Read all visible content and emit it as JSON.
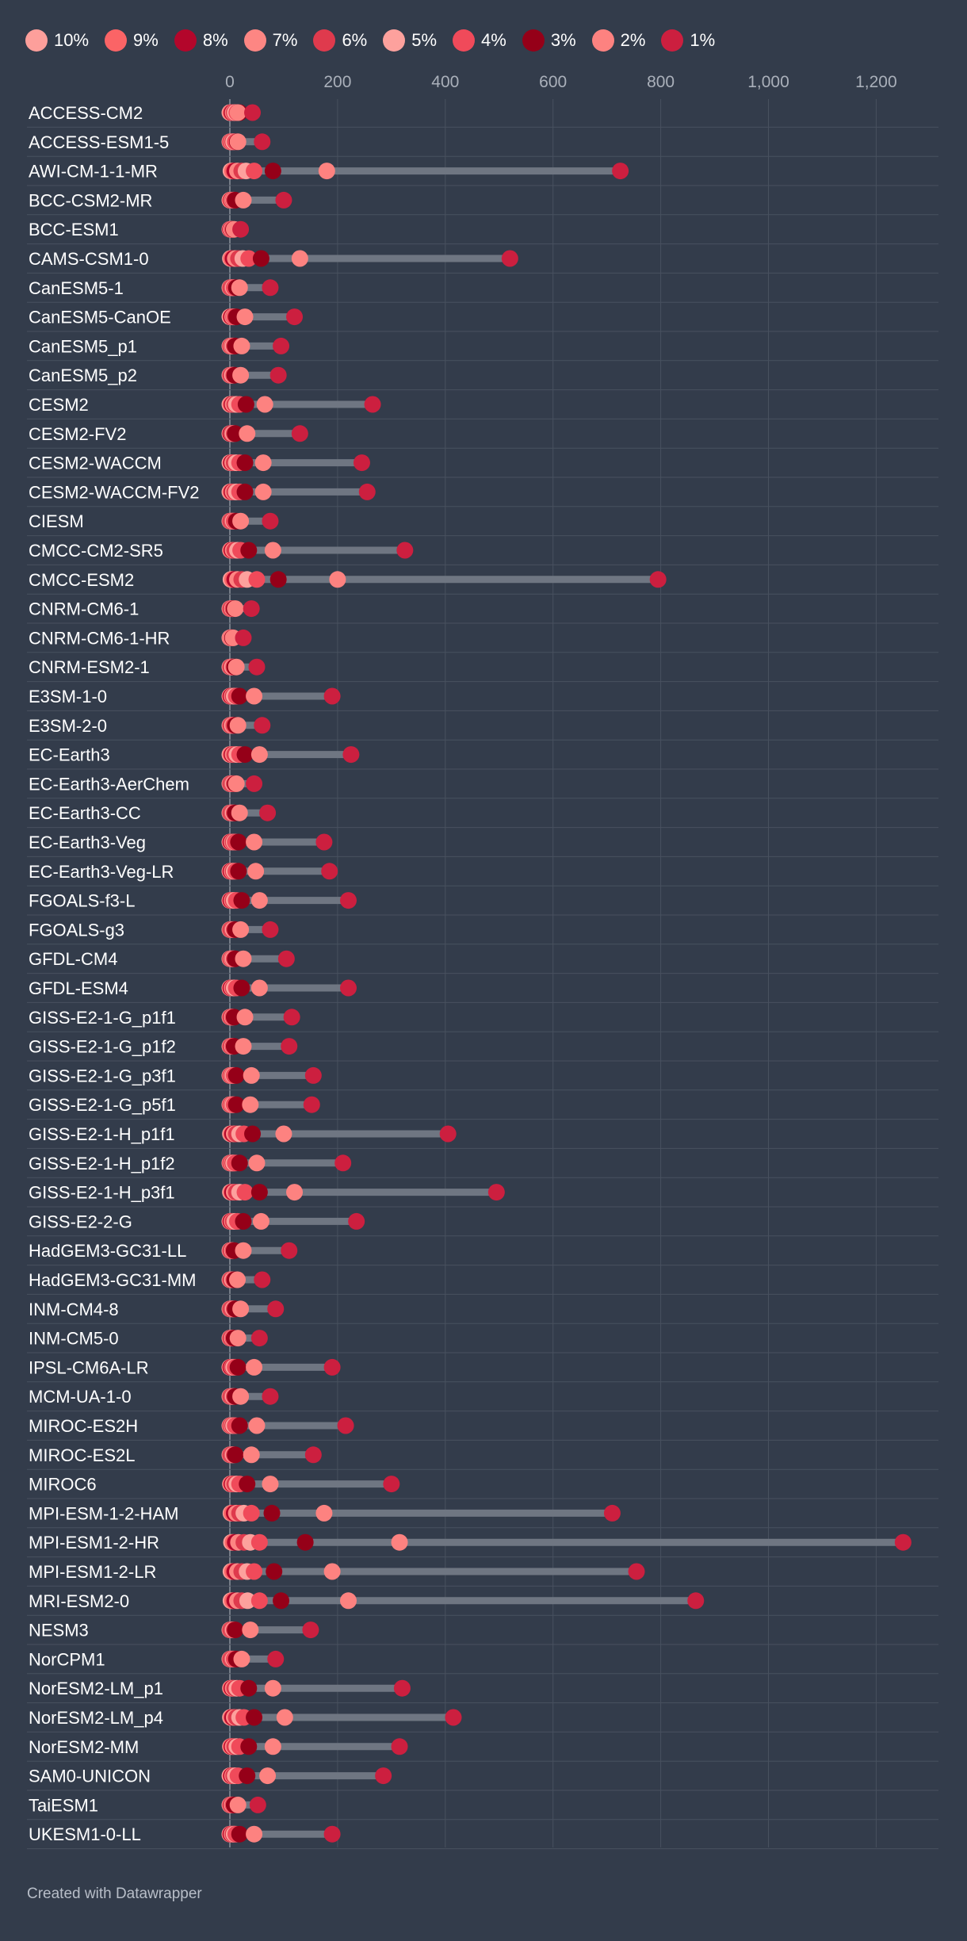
{
  "chart_data": {
    "type": "dot-range",
    "title": "",
    "xlabel": "",
    "ylabel": "",
    "xlim": [
      0,
      1300
    ],
    "xticks": [
      0,
      200,
      400,
      600,
      800,
      1000,
      1200
    ],
    "xtick_labels": [
      "0",
      "200",
      "400",
      "600",
      "800",
      "1,000",
      "1,200"
    ],
    "grid": true,
    "legend_position": "top",
    "series": [
      {
        "name": "10%",
        "color": "#fd9f9b"
      },
      {
        "name": "9%",
        "color": "#fb6466"
      },
      {
        "name": "8%",
        "color": "#b3062b"
      },
      {
        "name": "7%",
        "color": "#fd8683"
      },
      {
        "name": "6%",
        "color": "#df3a4d"
      },
      {
        "name": "5%",
        "color": "#fda19d"
      },
      {
        "name": "4%",
        "color": "#f04a5a"
      },
      {
        "name": "3%",
        "color": "#950018"
      },
      {
        "name": "2%",
        "color": "#fd8280"
      },
      {
        "name": "1%",
        "color": "#cc1f3f"
      }
    ],
    "categories": [
      "ACCESS-CM2",
      "ACCESS-ESM1-5",
      "AWI-CM-1-1-MR",
      "BCC-CSM2-MR",
      "BCC-ESM1",
      "CAMS-CSM1-0",
      "CanESM5-1",
      "CanESM5-CanOE",
      "CanESM5_p1",
      "CanESM5_p2",
      "CESM2",
      "CESM2-FV2",
      "CESM2-WACCM",
      "CESM2-WACCM-FV2",
      "CIESM",
      "CMCC-CM2-SR5",
      "CMCC-ESM2",
      "CNRM-CM6-1",
      "CNRM-CM6-1-HR",
      "CNRM-ESM2-1",
      "E3SM-1-0",
      "E3SM-2-0",
      "EC-Earth3",
      "EC-Earth3-AerChem",
      "EC-Earth3-CC",
      "EC-Earth3-Veg",
      "EC-Earth3-Veg-LR",
      "FGOALS-f3-L",
      "FGOALS-g3",
      "GFDL-CM4",
      "GFDL-ESM4",
      "GISS-E2-1-G_p1f1",
      "GISS-E2-1-G_p1f2",
      "GISS-E2-1-G_p3f1",
      "GISS-E2-1-G_p5f1",
      "GISS-E2-1-H_p1f1",
      "GISS-E2-1-H_p1f2",
      "GISS-E2-1-H_p3f1",
      "GISS-E2-2-G",
      "HadGEM3-GC31-LL",
      "HadGEM3-GC31-MM",
      "INM-CM4-8",
      "INM-CM5-0",
      "IPSL-CM6A-LR",
      "MCM-UA-1-0",
      "MIROC-ES2H",
      "MIROC-ES2L",
      "MIROC6",
      "MPI-ESM-1-2-HAM",
      "MPI-ESM1-2-HR",
      "MPI-ESM1-2-LR",
      "MRI-ESM2-0",
      "NESM3",
      "NorCPM1",
      "NorESM2-LM_p1",
      "NorESM2-LM_p4",
      "NorESM2-MM",
      "SAM0-UNICON",
      "TaiESM1",
      "UKESM1-0-LL"
    ],
    "values": [
      [
        0,
        2,
        4,
        6,
        8,
        10,
        13,
        18,
        15,
        42
      ],
      [
        0,
        1,
        2,
        3,
        5,
        7,
        10,
        14,
        15,
        60
      ],
      [
        2,
        5,
        9,
        14,
        22,
        30,
        45,
        80,
        180,
        725
      ],
      [
        0,
        1,
        3,
        4,
        6,
        7,
        8,
        10,
        25,
        100
      ],
      [
        0,
        1,
        1,
        2,
        3,
        4,
        5,
        7,
        8,
        20
      ],
      [
        1,
        3,
        6,
        10,
        16,
        24,
        35,
        58,
        130,
        520
      ],
      [
        0,
        1,
        2,
        3,
        4,
        6,
        8,
        12,
        18,
        75
      ],
      [
        0,
        2,
        3,
        5,
        7,
        8,
        9,
        12,
        28,
        120
      ],
      [
        0,
        1,
        2,
        3,
        5,
        6,
        8,
        10,
        22,
        95
      ],
      [
        0,
        1,
        2,
        3,
        4,
        5,
        7,
        9,
        20,
        90
      ],
      [
        0,
        2,
        4,
        6,
        9,
        12,
        18,
        30,
        65,
        265
      ],
      [
        0,
        1,
        2,
        4,
        5,
        6,
        8,
        10,
        32,
        130
      ],
      [
        0,
        2,
        3,
        5,
        8,
        12,
        18,
        28,
        62,
        245
      ],
      [
        0,
        2,
        4,
        6,
        9,
        12,
        18,
        28,
        62,
        255
      ],
      [
        0,
        1,
        2,
        3,
        4,
        6,
        8,
        12,
        20,
        75
      ],
      [
        1,
        2,
        4,
        6,
        9,
        14,
        20,
        35,
        80,
        325
      ],
      [
        2,
        5,
        9,
        14,
        22,
        32,
        50,
        90,
        200,
        795
      ],
      [
        0,
        1,
        2,
        3,
        4,
        5,
        6,
        8,
        10,
        40
      ],
      [
        0,
        1,
        2,
        2,
        3,
        3,
        4,
        5,
        6,
        25
      ],
      [
        0,
        1,
        2,
        3,
        4,
        5,
        7,
        9,
        12,
        50
      ],
      [
        0,
        1,
        2,
        4,
        6,
        8,
        12,
        18,
        45,
        190
      ],
      [
        0,
        1,
        2,
        3,
        4,
        5,
        7,
        10,
        15,
        60
      ],
      [
        0,
        2,
        4,
        6,
        9,
        13,
        18,
        28,
        55,
        225
      ],
      [
        0,
        1,
        2,
        3,
        4,
        6,
        8,
        10,
        12,
        45
      ],
      [
        0,
        1,
        2,
        3,
        4,
        6,
        8,
        10,
        18,
        70
      ],
      [
        0,
        1,
        2,
        4,
        6,
        8,
        10,
        16,
        45,
        175
      ],
      [
        0,
        1,
        2,
        4,
        6,
        8,
        11,
        16,
        48,
        185
      ],
      [
        0,
        1,
        2,
        4,
        6,
        8,
        12,
        22,
        55,
        220
      ],
      [
        0,
        1,
        2,
        3,
        4,
        6,
        8,
        10,
        20,
        75
      ],
      [
        0,
        1,
        2,
        3,
        5,
        6,
        8,
        10,
        25,
        105
      ],
      [
        0,
        1,
        2,
        4,
        6,
        8,
        12,
        22,
        55,
        220
      ],
      [
        0,
        1,
        2,
        3,
        4,
        5,
        6,
        8,
        28,
        115
      ],
      [
        0,
        1,
        2,
        3,
        4,
        5,
        6,
        8,
        25,
        110
      ],
      [
        0,
        1,
        2,
        3,
        5,
        6,
        8,
        12,
        40,
        155
      ],
      [
        0,
        1,
        2,
        3,
        5,
        6,
        8,
        12,
        38,
        152
      ],
      [
        1,
        3,
        5,
        8,
        12,
        18,
        26,
        42,
        100,
        405
      ],
      [
        0,
        1,
        2,
        3,
        5,
        7,
        10,
        18,
        50,
        210
      ],
      [
        1,
        3,
        5,
        8,
        12,
        18,
        28,
        55,
        120,
        495
      ],
      [
        0,
        1,
        2,
        4,
        6,
        9,
        14,
        25,
        58,
        235
      ],
      [
        0,
        1,
        2,
        3,
        4,
        5,
        6,
        8,
        25,
        110
      ],
      [
        0,
        1,
        2,
        3,
        4,
        5,
        7,
        9,
        14,
        60
      ],
      [
        0,
        1,
        2,
        3,
        4,
        6,
        8,
        10,
        20,
        85
      ],
      [
        0,
        1,
        2,
        3,
        4,
        5,
        6,
        8,
        15,
        55
      ],
      [
        0,
        1,
        2,
        4,
        5,
        7,
        10,
        15,
        45,
        190
      ],
      [
        0,
        1,
        2,
        3,
        4,
        6,
        8,
        10,
        20,
        75
      ],
      [
        0,
        1,
        2,
        3,
        5,
        7,
        10,
        18,
        50,
        215
      ],
      [
        0,
        1,
        2,
        3,
        4,
        6,
        8,
        10,
        40,
        155
      ],
      [
        1,
        2,
        4,
        6,
        9,
        13,
        18,
        32,
        75,
        300
      ],
      [
        2,
        4,
        8,
        12,
        18,
        26,
        40,
        78,
        175,
        710
      ],
      [
        3,
        6,
        10,
        16,
        26,
        38,
        55,
        140,
        315,
        1250
      ],
      [
        2,
        5,
        9,
        14,
        22,
        32,
        45,
        82,
        190,
        755
      ],
      [
        2,
        5,
        9,
        14,
        22,
        33,
        55,
        95,
        220,
        865
      ],
      [
        0,
        1,
        2,
        3,
        4,
        6,
        8,
        10,
        38,
        150
      ],
      [
        0,
        1,
        2,
        3,
        4,
        6,
        8,
        12,
        22,
        85
      ],
      [
        1,
        2,
        4,
        6,
        9,
        13,
        18,
        35,
        80,
        320
      ],
      [
        1,
        3,
        5,
        8,
        12,
        18,
        26,
        45,
        102,
        415
      ],
      [
        1,
        2,
        4,
        6,
        9,
        13,
        18,
        35,
        80,
        315
      ],
      [
        0,
        2,
        3,
        5,
        7,
        10,
        15,
        32,
        70,
        285
      ],
      [
        0,
        1,
        2,
        3,
        4,
        5,
        6,
        8,
        15,
        52
      ],
      [
        0,
        1,
        2,
        4,
        6,
        8,
        11,
        18,
        45,
        190
      ]
    ]
  },
  "footer": {
    "credit": "Created with Datawrapper"
  }
}
